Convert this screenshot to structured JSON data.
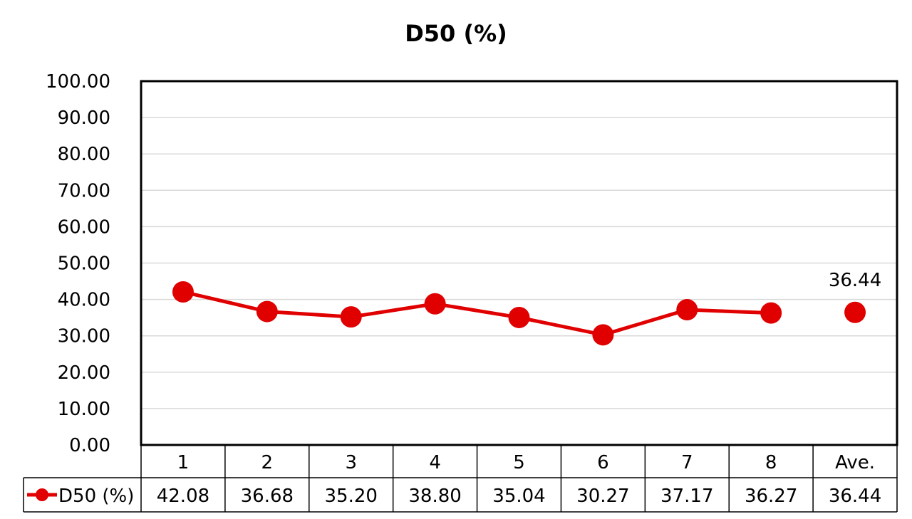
{
  "chart_data": {
    "type": "line",
    "title": "D50 (%)",
    "categories": [
      "1",
      "2",
      "3",
      "4",
      "5",
      "6",
      "7",
      "8",
      "Ave."
    ],
    "series": [
      {
        "name": "D50 (%)",
        "values": [
          42.08,
          36.68,
          35.2,
          38.8,
          35.04,
          30.27,
          37.17,
          36.27,
          null
        ],
        "color": "#e00000",
        "marker": "circle"
      },
      {
        "name": "Ave.",
        "values": [
          null,
          null,
          null,
          null,
          null,
          null,
          null,
          null,
          36.44
        ],
        "color": "#e00000",
        "marker": "circle"
      }
    ],
    "data_label": {
      "category": "Ave.",
      "text": "36.44"
    },
    "ylim": [
      0,
      100
    ],
    "yticks": [
      "0.00",
      "10.00",
      "20.00",
      "30.00",
      "40.00",
      "50.00",
      "60.00",
      "70.00",
      "80.00",
      "90.00",
      "100.00"
    ],
    "grid": true,
    "data_table": {
      "legend_label": "D50 (%)",
      "values": [
        "42.08",
        "36.68",
        "35.20",
        "38.80",
        "35.04",
        "30.27",
        "37.17",
        "36.27",
        "36.44"
      ]
    }
  }
}
